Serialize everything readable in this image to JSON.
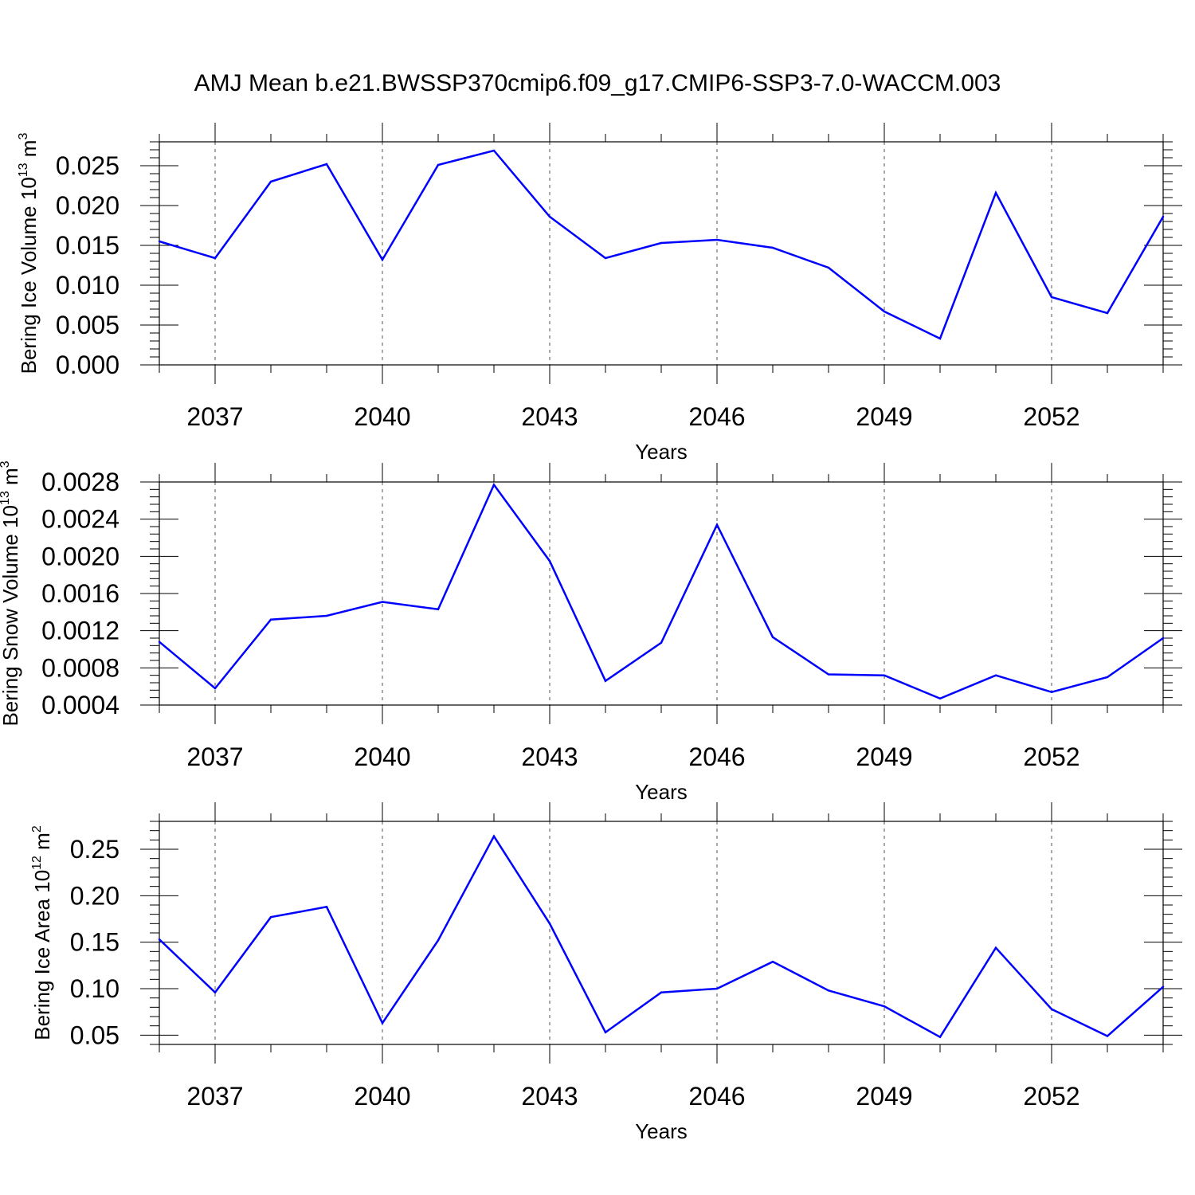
{
  "title": "AMJ Mean b.e21.BWSSP370cmip6.f09_g17.CMIP6-SSP3-7.0-WACCM.003",
  "line_color": "#0000ff",
  "chart_data": [
    {
      "type": "line",
      "ylabel": {
        "base": "Bering Ice Volume 10",
        "exp": "13",
        "unit": " m",
        "unit_exp": "3"
      },
      "xlabel": "Years",
      "xlim": [
        2036,
        2054
      ],
      "ylim": [
        0.0,
        0.028
      ],
      "x_ticks": [
        2037,
        2040,
        2043,
        2046,
        2049,
        2052
      ],
      "y_ticks": [
        "0.000",
        "0.005",
        "0.010",
        "0.015",
        "0.020",
        "0.025"
      ],
      "y_tick_values": [
        0.0,
        0.005,
        0.01,
        0.015,
        0.02,
        0.025
      ],
      "grid": "vertical dashed at major x ticks",
      "x": [
        2036,
        2037,
        2038,
        2039,
        2040,
        2041,
        2042,
        2043,
        2044,
        2045,
        2046,
        2047,
        2048,
        2049,
        2050,
        2051,
        2052,
        2053,
        2054
      ],
      "values": [
        0.0155,
        0.0134,
        0.023,
        0.0252,
        0.0132,
        0.0251,
        0.0269,
        0.0186,
        0.0134,
        0.0153,
        0.0157,
        0.0147,
        0.0122,
        0.0067,
        0.0033,
        0.0216,
        0.0085,
        0.0065,
        0.0186
      ]
    },
    {
      "type": "line",
      "ylabel": {
        "base": "Bering Snow Volume 10",
        "exp": "13",
        "unit": " m",
        "unit_exp": "3"
      },
      "xlabel": "Years",
      "xlim": [
        2036,
        2054
      ],
      "ylim": [
        0.0004,
        0.0028
      ],
      "x_ticks": [
        2037,
        2040,
        2043,
        2046,
        2049,
        2052
      ],
      "y_ticks": [
        "0.0004",
        "0.0008",
        "0.0012",
        "0.0016",
        "0.0020",
        "0.0024",
        "0.0028"
      ],
      "y_tick_values": [
        0.0004,
        0.0008,
        0.0012,
        0.0016,
        0.002,
        0.0024,
        0.0028
      ],
      "grid": "vertical dashed at major x ticks",
      "x": [
        2036,
        2037,
        2038,
        2039,
        2040,
        2041,
        2042,
        2043,
        2044,
        2045,
        2046,
        2047,
        2048,
        2049,
        2050,
        2051,
        2052,
        2053,
        2054
      ],
      "values": [
        0.00108,
        0.00058,
        0.00132,
        0.00136,
        0.00151,
        0.00143,
        0.00277,
        0.00195,
        0.00066,
        0.00107,
        0.00234,
        0.00113,
        0.00073,
        0.00072,
        0.00047,
        0.00072,
        0.00054,
        0.0007,
        0.00112
      ]
    },
    {
      "type": "line",
      "ylabel": {
        "base": "Bering Ice Area 10",
        "exp": "12",
        "unit": " m",
        "unit_exp": "2"
      },
      "xlabel": "Years",
      "xlim": [
        2036,
        2054
      ],
      "ylim": [
        0.04,
        0.28
      ],
      "x_ticks": [
        2037,
        2040,
        2043,
        2046,
        2049,
        2052
      ],
      "y_ticks": [
        "0.05",
        "0.10",
        "0.15",
        "0.20",
        "0.25"
      ],
      "y_tick_values": [
        0.05,
        0.1,
        0.15,
        0.2,
        0.25
      ],
      "grid": "vertical dashed at major x ticks",
      "x": [
        2036,
        2037,
        2038,
        2039,
        2040,
        2041,
        2042,
        2043,
        2044,
        2045,
        2046,
        2047,
        2048,
        2049,
        2050,
        2051,
        2052,
        2053,
        2054
      ],
      "values": [
        0.153,
        0.096,
        0.177,
        0.188,
        0.063,
        0.152,
        0.264,
        0.17,
        0.053,
        0.096,
        0.1,
        0.129,
        0.098,
        0.081,
        0.048,
        0.144,
        0.078,
        0.049,
        0.102
      ]
    }
  ]
}
